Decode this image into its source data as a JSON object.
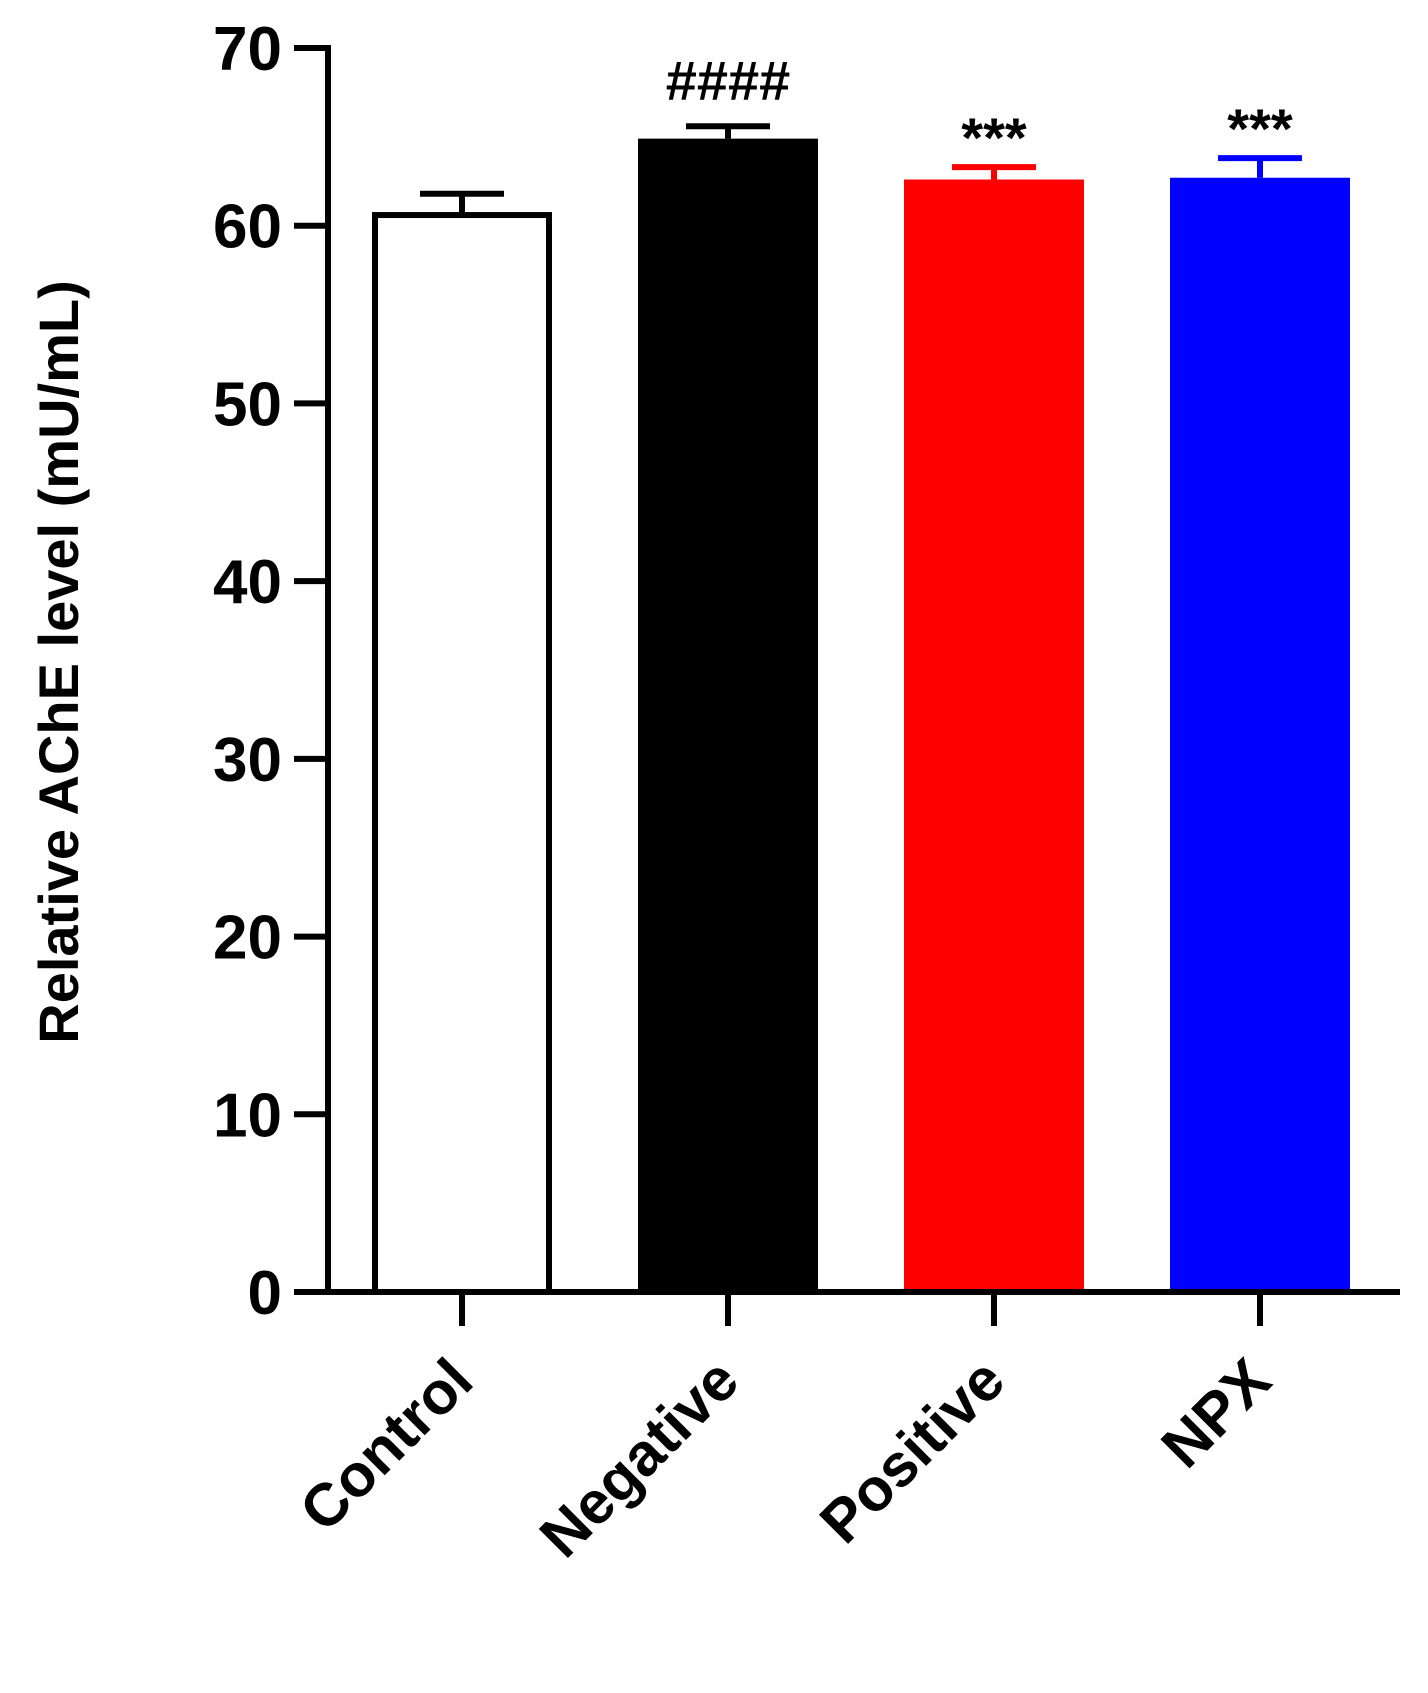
{
  "chart_data": {
    "type": "bar",
    "title": "",
    "xlabel": "",
    "ylabel": "Relative AChE level (mU/mL)",
    "ylim": [
      0,
      70
    ],
    "yticks": [
      0,
      10,
      20,
      30,
      40,
      50,
      60,
      70
    ],
    "categories": [
      "Control",
      "Negative",
      "Positive",
      "NPX"
    ],
    "values": [
      60.6,
      64.9,
      62.6,
      62.7
    ],
    "errors": [
      1.2,
      0.7,
      0.7,
      1.1
    ],
    "fill_colors": [
      "#ffffff",
      "#000000",
      "#ff0000",
      "#0000ff"
    ],
    "error_colors": [
      "#000000",
      "#000000",
      "#ff0000",
      "#0000ff"
    ],
    "annotations": [
      "",
      "####",
      "***",
      "***"
    ],
    "grid": false,
    "legend": "none"
  }
}
